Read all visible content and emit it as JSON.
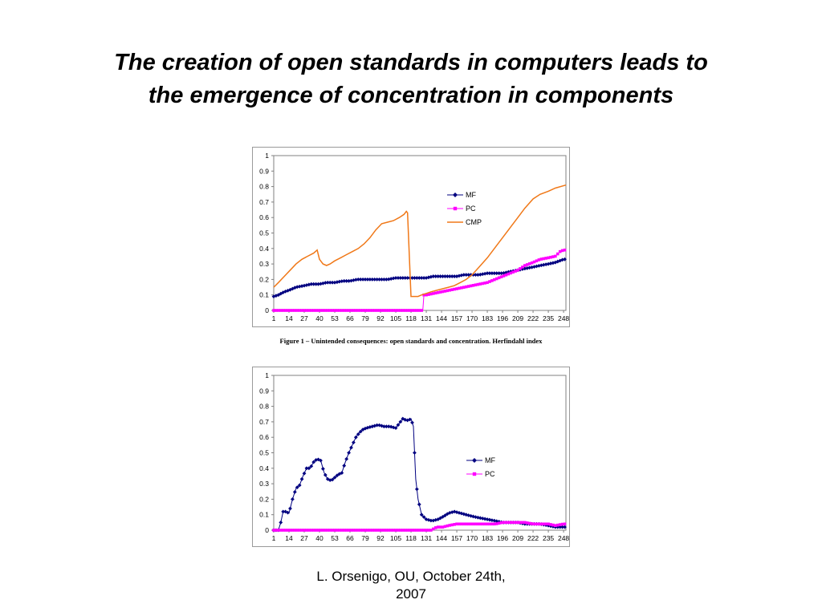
{
  "slide": {
    "title_line1": "The creation of open standards in computers leads to",
    "title_line2": "the emergence of concentration  in components",
    "caption": "Figure  1 – Unintended consequences: open standards and concentration. Herfindahl index",
    "footer_line1": "L. Orsenigo, OU, October 24th,",
    "footer_line2": "2007"
  },
  "chart_data": [
    {
      "type": "line",
      "title": "",
      "xlabel": "",
      "ylabel": "",
      "x_range": [
        1,
        250
      ],
      "ylim": [
        0,
        1
      ],
      "y_ticks": [
        "0",
        "0.1",
        "0.2",
        "0.3",
        "0.4",
        "0.5",
        "0.6",
        "0.7",
        "0.8",
        "0.9",
        "1"
      ],
      "x_ticks": [
        "1",
        "14",
        "27",
        "40",
        "53",
        "66",
        "79",
        "92",
        "105",
        "118",
        "131",
        "144",
        "157",
        "170",
        "183",
        "196",
        "209",
        "222",
        "235",
        "248"
      ],
      "legend_position": "upper-right-inside",
      "series": [
        {
          "name": "MF",
          "color": "#000080",
          "marker": "diamond",
          "x": [
            1,
            5,
            10,
            14,
            20,
            27,
            33,
            40,
            46,
            53,
            60,
            66,
            72,
            79,
            85,
            92,
            98,
            105,
            111,
            118,
            124,
            131,
            137,
            144,
            150,
            157,
            163,
            170,
            176,
            183,
            189,
            196,
            202,
            209,
            215,
            222,
            228,
            235,
            241,
            248,
            250
          ],
          "values": [
            0.09,
            0.1,
            0.12,
            0.13,
            0.15,
            0.16,
            0.17,
            0.17,
            0.18,
            0.18,
            0.19,
            0.19,
            0.2,
            0.2,
            0.2,
            0.2,
            0.2,
            0.21,
            0.21,
            0.21,
            0.21,
            0.21,
            0.22,
            0.22,
            0.22,
            0.22,
            0.23,
            0.23,
            0.23,
            0.24,
            0.24,
            0.24,
            0.25,
            0.26,
            0.27,
            0.28,
            0.29,
            0.3,
            0.31,
            0.33,
            0.33
          ]
        },
        {
          "name": "PC",
          "color": "#ff00ff",
          "marker": "square",
          "x": [
            1,
            60,
            128,
            129,
            131,
            144,
            157,
            170,
            183,
            196,
            209,
            215,
            222,
            228,
            235,
            241,
            245,
            248,
            250
          ],
          "values": [
            0,
            0,
            0,
            0.1,
            0.1,
            0.12,
            0.14,
            0.16,
            0.18,
            0.22,
            0.26,
            0.29,
            0.31,
            0.33,
            0.34,
            0.35,
            0.38,
            0.39,
            0.39
          ]
        },
        {
          "name": "CMP",
          "color": "#f07818",
          "marker": "none",
          "x": [
            1,
            5,
            10,
            15,
            20,
            25,
            30,
            35,
            38,
            40,
            43,
            46,
            49,
            53,
            58,
            63,
            68,
            73,
            78,
            83,
            88,
            93,
            98,
            103,
            108,
            112,
            114,
            115,
            118,
            121,
            124,
            127,
            131,
            135,
            140,
            145,
            150,
            155,
            160,
            165,
            170,
            176,
            183,
            190,
            196,
            203,
            209,
            215,
            222,
            228,
            235,
            241,
            250
          ],
          "values": [
            0.15,
            0.18,
            0.22,
            0.26,
            0.3,
            0.33,
            0.35,
            0.37,
            0.39,
            0.33,
            0.3,
            0.29,
            0.3,
            0.32,
            0.34,
            0.36,
            0.38,
            0.4,
            0.43,
            0.47,
            0.52,
            0.56,
            0.57,
            0.58,
            0.6,
            0.62,
            0.64,
            0.63,
            0.09,
            0.09,
            0.09,
            0.1,
            0.11,
            0.12,
            0.13,
            0.14,
            0.15,
            0.16,
            0.18,
            0.2,
            0.23,
            0.28,
            0.34,
            0.41,
            0.47,
            0.54,
            0.6,
            0.66,
            0.72,
            0.75,
            0.77,
            0.79,
            0.81
          ]
        }
      ]
    },
    {
      "type": "line",
      "title": "",
      "xlabel": "",
      "ylabel": "",
      "x_range": [
        1,
        250
      ],
      "ylim": [
        0,
        1
      ],
      "y_ticks": [
        "0",
        "0.1",
        "0.2",
        "0.3",
        "0.4",
        "0.5",
        "0.6",
        "0.7",
        "0.8",
        "0.9",
        "1"
      ],
      "x_ticks": [
        "1",
        "14",
        "27",
        "40",
        "53",
        "66",
        "79",
        "92",
        "105",
        "118",
        "131",
        "144",
        "157",
        "170",
        "183",
        "196",
        "209",
        "222",
        "235",
        "248"
      ],
      "legend_position": "right-inside",
      "series": [
        {
          "name": "MF",
          "color": "#000080",
          "marker": "diamond",
          "x": [
            1,
            5,
            7,
            9,
            11,
            14,
            17,
            20,
            23,
            26,
            29,
            32,
            35,
            38,
            41,
            44,
            47,
            50,
            53,
            56,
            59,
            62,
            65,
            68,
            71,
            74,
            77,
            80,
            85,
            90,
            95,
            100,
            105,
            108,
            111,
            114,
            116,
            118,
            120,
            122,
            124,
            127,
            131,
            136,
            141,
            146,
            150,
            155,
            160,
            165,
            170,
            176,
            183,
            190,
            196,
            203,
            209,
            215,
            222,
            228,
            235,
            241,
            248,
            250
          ],
          "values": [
            0,
            0,
            0.05,
            0.12,
            0.12,
            0.11,
            0.2,
            0.27,
            0.29,
            0.35,
            0.4,
            0.4,
            0.44,
            0.46,
            0.45,
            0.37,
            0.33,
            0.32,
            0.34,
            0.36,
            0.37,
            0.44,
            0.5,
            0.55,
            0.6,
            0.63,
            0.65,
            0.66,
            0.67,
            0.68,
            0.67,
            0.67,
            0.66,
            0.69,
            0.72,
            0.71,
            0.71,
            0.72,
            0.67,
            0.33,
            0.2,
            0.1,
            0.07,
            0.06,
            0.07,
            0.09,
            0.11,
            0.12,
            0.11,
            0.1,
            0.09,
            0.08,
            0.07,
            0.06,
            0.05,
            0.05,
            0.05,
            0.04,
            0.04,
            0.04,
            0.03,
            0.02,
            0.02,
            0.02
          ]
        },
        {
          "name": "PC",
          "color": "#ff00ff",
          "marker": "square",
          "x": [
            1,
            60,
            120,
            135,
            140,
            145,
            150,
            157,
            165,
            170,
            176,
            183,
            190,
            196,
            203,
            209,
            215,
            222,
            228,
            235,
            241,
            248,
            250
          ],
          "values": [
            0,
            0,
            0,
            0,
            0.02,
            0.02,
            0.03,
            0.04,
            0.04,
            0.04,
            0.04,
            0.04,
            0.04,
            0.05,
            0.05,
            0.05,
            0.05,
            0.04,
            0.04,
            0.04,
            0.03,
            0.04,
            0.04
          ]
        }
      ]
    }
  ]
}
